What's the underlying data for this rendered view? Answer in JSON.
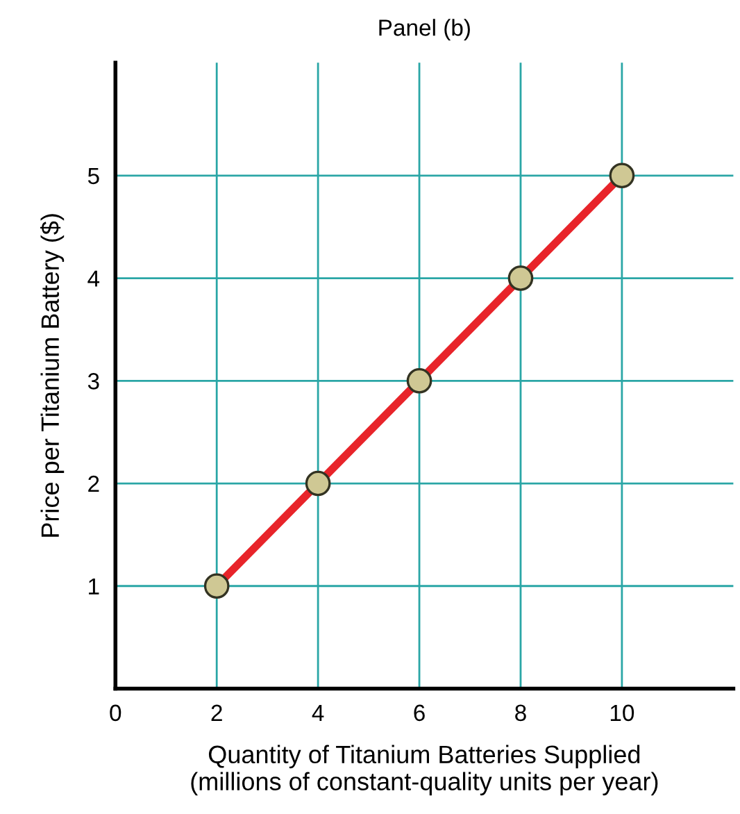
{
  "chart_data": {
    "type": "line",
    "title": "Panel (b)",
    "xlabel": "Quantity of Titanium Batteries Supplied\n(millions of constant-quality units per year)",
    "ylabel": "Price per Titanium Battery ($)",
    "x": [
      2,
      4,
      6,
      8,
      10
    ],
    "series": [
      {
        "color": "#e8242a",
        "values": [
          1,
          2,
          3,
          4,
          5
        ]
      }
    ],
    "marker": "circle",
    "line_style": "solid",
    "xlim": [
      0,
      12.2
    ],
    "ylim": [
      0,
      6.1
    ],
    "xticks": [
      0,
      2,
      4,
      6,
      8,
      10
    ],
    "yticks": [
      1,
      2,
      3,
      4,
      5
    ],
    "grid": true
  }
}
